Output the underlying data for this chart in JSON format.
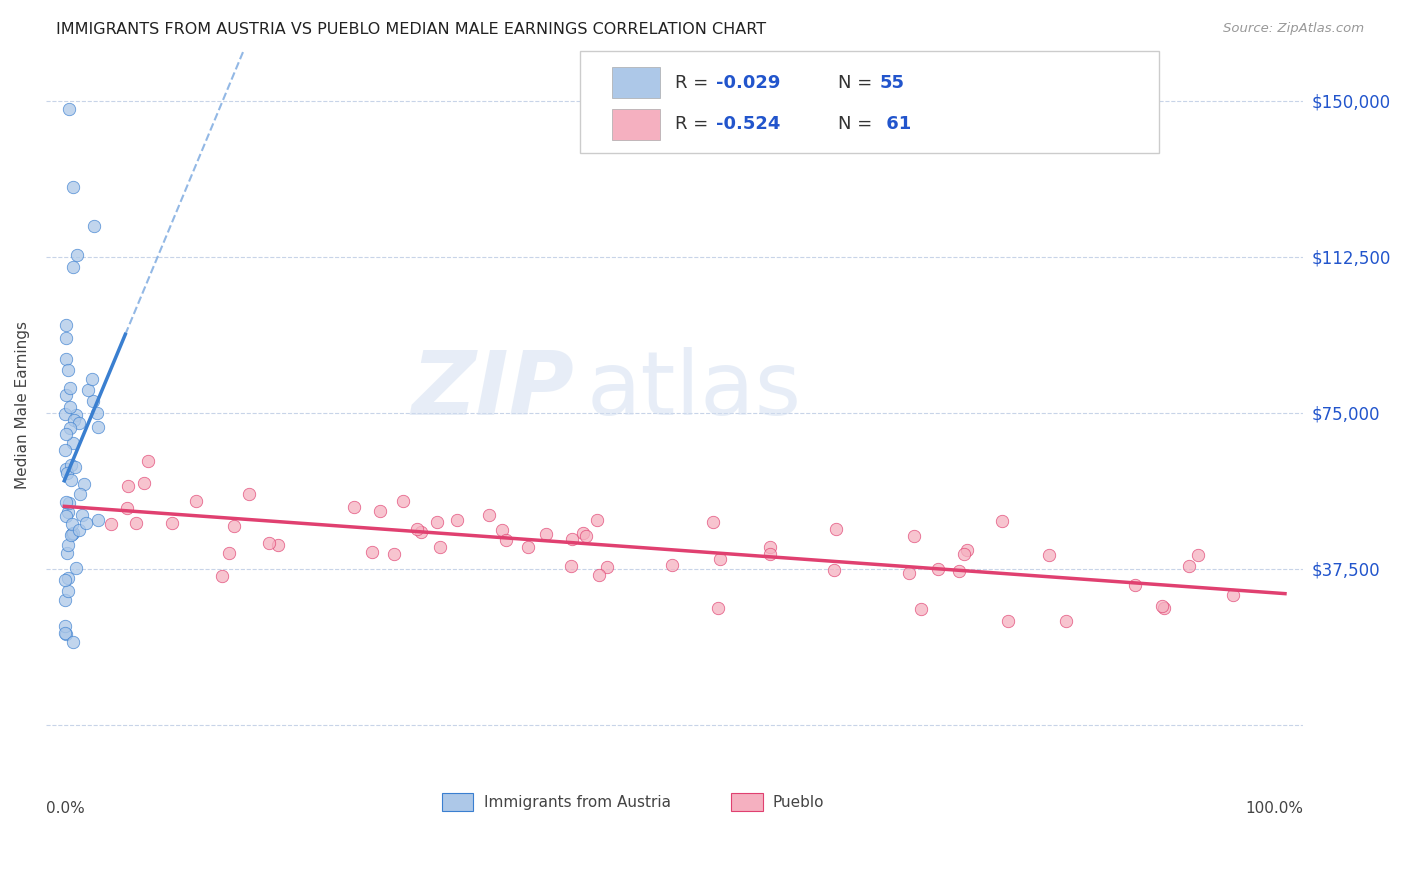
{
  "title": "IMMIGRANTS FROM AUSTRIA VS PUEBLO MEDIAN MALE EARNINGS CORRELATION CHART",
  "source": "Source: ZipAtlas.com",
  "ylabel": "Median Male Earnings",
  "color_blue": "#adc8e8",
  "color_pink": "#f5b0c0",
  "line_blue": "#3a7fd0",
  "line_pink": "#e04070",
  "watermark_zip": "ZIP",
  "watermark_atlas": "atlas",
  "yticks": [
    0,
    37500,
    75000,
    112500,
    150000
  ],
  "ytick_labels": [
    "",
    "$37,500",
    "$75,000",
    "$112,500",
    "$150,000"
  ],
  "austria_seed": 42,
  "pueblo_seed": 77
}
